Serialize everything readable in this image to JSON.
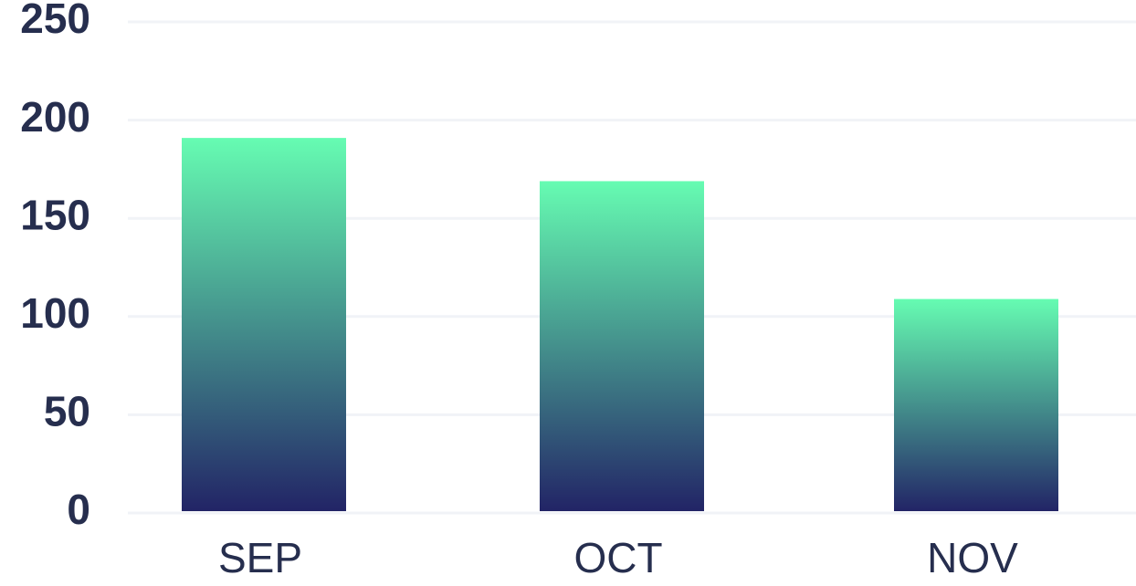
{
  "colors": {
    "text": "#262E4E",
    "grid": "#F1F3F7",
    "bar_top": "#66FCB2",
    "bar_bottom": "#222466"
  },
  "chart_data": {
    "type": "bar",
    "categories": [
      "SEP",
      "OCT",
      "NOV"
    ],
    "values": [
      190,
      168,
      108
    ],
    "yticks": [
      0,
      50,
      100,
      150,
      200,
      250
    ],
    "ylim": [
      0,
      250
    ],
    "title": "",
    "xlabel": "",
    "ylabel": "",
    "grid": true,
    "legend": "none"
  }
}
